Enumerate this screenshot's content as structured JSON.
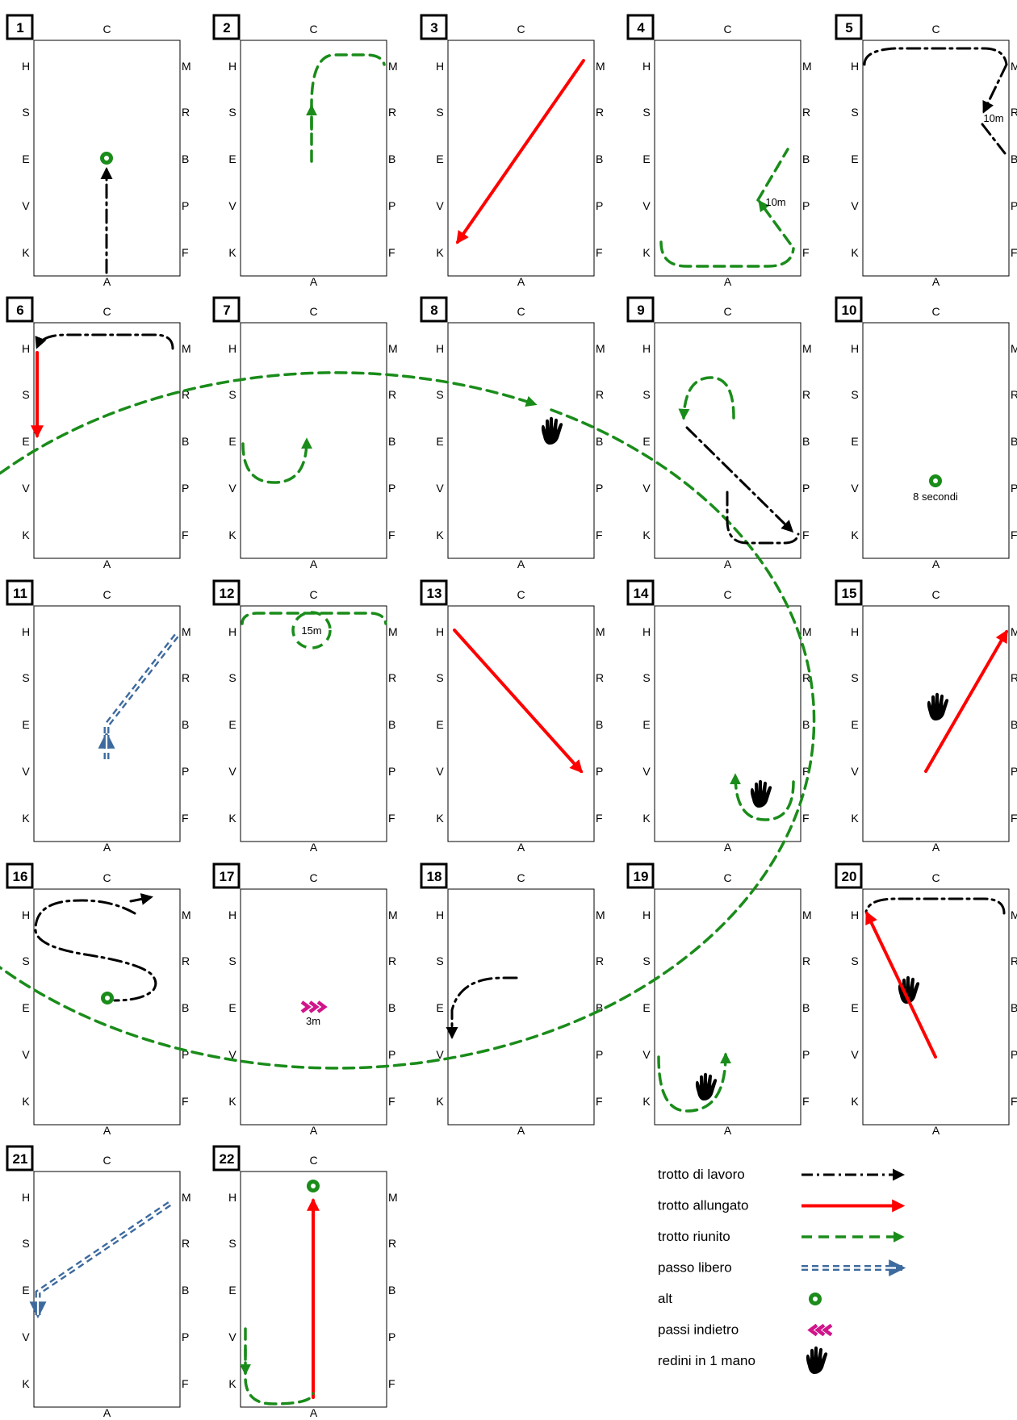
{
  "letters": {
    "top": "C",
    "bottom": "A",
    "left": [
      "H",
      "S",
      "E",
      "V",
      "K"
    ],
    "right": [
      "M",
      "R",
      "B",
      "P",
      "F"
    ]
  },
  "panels": [
    "1",
    "2",
    "3",
    "4",
    "5",
    "6",
    "7",
    "8",
    "9",
    "10",
    "11",
    "12",
    "13",
    "14",
    "15",
    "16",
    "17",
    "18",
    "19",
    "20",
    "21",
    "22"
  ],
  "annotations": {
    "p4": "10m",
    "p5": "10m",
    "p10": "8 secondi",
    "p12": "15m",
    "p17": "3m"
  },
  "legend": [
    {
      "label": "trotto di lavoro",
      "style": "dashdot",
      "color": "#000000"
    },
    {
      "label": "trotto allungato",
      "style": "solid",
      "color": "#ff0000"
    },
    {
      "label": "trotto riunito",
      "style": "dashed",
      "color": "#1a8c1a"
    },
    {
      "label": "passo libero",
      "style": "double-dashed",
      "color": "#3d6a9e"
    },
    {
      "label": "alt",
      "style": "halt",
      "color": "#1a8c1a"
    },
    {
      "label": "passi indietro",
      "style": "rein-back",
      "color": "#d0158a"
    },
    {
      "label": "redini in 1 mano",
      "style": "hand",
      "color": "#000000"
    }
  ],
  "colors": {
    "work": "#000000",
    "extended": "#ff0000",
    "collected": "#1a8c1a",
    "walk": "#3d6a9e",
    "halt": "#1a8c1a",
    "reinback": "#d0158a"
  }
}
